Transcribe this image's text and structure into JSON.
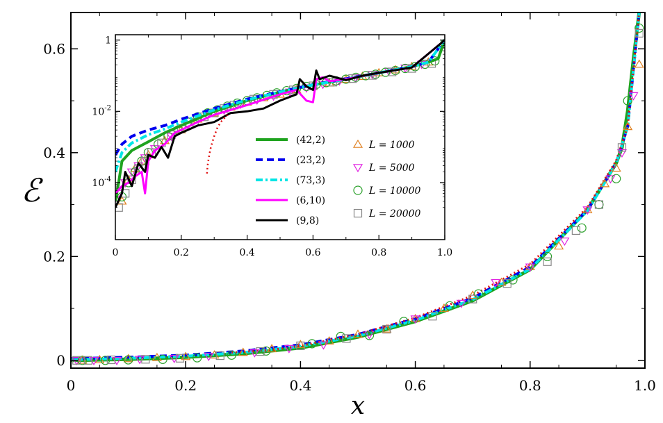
{
  "chart_data": [
    {
      "type": "line",
      "name": "main",
      "xlabel": "x",
      "ylabel": "ℰ",
      "xlim": [
        0,
        1.0
      ],
      "ylim": [
        -0.015,
        0.67
      ],
      "xticks": [
        0,
        0.2,
        0.4,
        0.6,
        0.8,
        1.0
      ],
      "xtick_labels": [
        "0",
        "0.2",
        "0.4",
        "0.6",
        "0.8",
        "1.0"
      ],
      "yticks": [
        0,
        0.2,
        0.4,
        0.6
      ],
      "ytick_labels": [
        "0",
        "0.2",
        "0.4",
        "0.6"
      ],
      "series": [
        {
          "name": "(42,2)",
          "style": "solid",
          "color": "#1fa31f",
          "width": 5,
          "x": [
            0,
            0.1,
            0.2,
            0.3,
            0.4,
            0.5,
            0.6,
            0.7,
            0.8,
            0.9,
            0.95,
            0.96,
            0.97,
            0.98,
            0.99
          ],
          "y": [
            0,
            0.002,
            0.006,
            0.013,
            0.024,
            0.045,
            0.075,
            0.115,
            0.175,
            0.29,
            0.38,
            0.41,
            0.48,
            0.58,
            0.67
          ]
        },
        {
          "name": "(23,2)",
          "style": "dashed",
          "color": "#0000ee",
          "width": 4,
          "x": [
            0,
            0.1,
            0.2,
            0.3,
            0.4,
            0.5,
            0.6,
            0.7,
            0.8,
            0.9,
            0.95,
            0.97,
            0.99
          ],
          "y": [
            0.003,
            0.006,
            0.01,
            0.018,
            0.03,
            0.05,
            0.08,
            0.12,
            0.18,
            0.29,
            0.38,
            0.45,
            0.67
          ]
        },
        {
          "name": "(73,3)",
          "style": "dashdot",
          "color": "#00e5e5",
          "width": 4,
          "x": [
            0,
            0.1,
            0.2,
            0.3,
            0.4,
            0.5,
            0.6,
            0.7,
            0.8,
            0.9,
            0.95,
            0.97,
            0.99
          ],
          "y": [
            0.001,
            0.004,
            0.008,
            0.015,
            0.027,
            0.047,
            0.077,
            0.117,
            0.176,
            0.288,
            0.38,
            0.45,
            0.67
          ]
        },
        {
          "name": "red-dotted",
          "style": "dotted",
          "color": "#e01010",
          "width": 3,
          "x": [
            0.28,
            0.35,
            0.4,
            0.5,
            0.6,
            0.7,
            0.8,
            0.9,
            0.95,
            0.97,
            0.99
          ],
          "y": [
            0.015,
            0.02,
            0.028,
            0.05,
            0.082,
            0.125,
            0.185,
            0.295,
            0.385,
            0.45,
            0.67
          ]
        }
      ],
      "markers": [
        {
          "name": "L = 1000",
          "symbol": "triangle-up",
          "color": "#e08020",
          "x": [
            0.02,
            0.05,
            0.1,
            0.15,
            0.2,
            0.25,
            0.3,
            0.35,
            0.4,
            0.45,
            0.5,
            0.55,
            0.6,
            0.65,
            0.7,
            0.75,
            0.8,
            0.85,
            0.9,
            0.93,
            0.95,
            0.97,
            0.99
          ],
          "y": [
            0.0,
            0.001,
            0.003,
            0.005,
            0.007,
            0.01,
            0.015,
            0.022,
            0.03,
            0.037,
            0.05,
            0.06,
            0.08,
            0.1,
            0.125,
            0.15,
            0.18,
            0.22,
            0.29,
            0.34,
            0.37,
            0.45,
            0.57
          ]
        },
        {
          "name": "L = 5000",
          "symbol": "triangle-down",
          "color": "#e020e0",
          "x": [
            0.01,
            0.04,
            0.08,
            0.12,
            0.18,
            0.24,
            0.32,
            0.38,
            0.44,
            0.52,
            0.6,
            0.68,
            0.74,
            0.8,
            0.86,
            0.9,
            0.94,
            0.96,
            0.98
          ],
          "y": [
            0.0,
            0.0,
            0.0,
            0.002,
            0.004,
            0.008,
            0.015,
            0.023,
            0.03,
            0.05,
            0.08,
            0.11,
            0.15,
            0.18,
            0.23,
            0.29,
            0.35,
            0.4,
            0.51
          ]
        },
        {
          "name": "L = 10000",
          "symbol": "circle",
          "color": "#2aa02a",
          "x": [
            0.02,
            0.06,
            0.1,
            0.16,
            0.22,
            0.28,
            0.34,
            0.42,
            0.47,
            0.52,
            0.58,
            0.66,
            0.71,
            0.77,
            0.83,
            0.89,
            0.92,
            0.95,
            0.97,
            0.99
          ],
          "y": [
            0.0,
            0.0,
            0.001,
            0.002,
            0.005,
            0.01,
            0.018,
            0.032,
            0.046,
            0.048,
            0.075,
            0.105,
            0.128,
            0.155,
            0.2,
            0.255,
            0.3,
            0.35,
            0.5,
            0.64
          ]
        },
        {
          "name": "L = 20000",
          "symbol": "square",
          "color": "#888888",
          "x": [
            0.01,
            0.03,
            0.07,
            0.13,
            0.19,
            0.26,
            0.33,
            0.4,
            0.48,
            0.55,
            0.63,
            0.7,
            0.76,
            0.83,
            0.88,
            0.92,
            0.96,
            0.99
          ],
          "y": [
            0.0,
            0.0,
            0.001,
            0.002,
            0.004,
            0.009,
            0.017,
            0.028,
            0.042,
            0.06,
            0.085,
            0.118,
            0.148,
            0.19,
            0.25,
            0.3,
            0.41,
            0.63
          ]
        }
      ]
    },
    {
      "type": "line",
      "name": "inset",
      "yscale": "log",
      "xlim": [
        0,
        1.0
      ],
      "ylim_log10": [
        -5.6,
        0.15
      ],
      "xticks": [
        0,
        0.2,
        0.4,
        0.6,
        0.8,
        1.0
      ],
      "xtick_labels": [
        "0",
        "0.2",
        "0.4",
        "0.6",
        "0.8",
        "1.0"
      ],
      "yticks_log10": [
        -4,
        -2,
        0
      ],
      "ytick_labels": [
        "10^-4",
        "10^-2",
        "1"
      ],
      "series": [
        {
          "name": "(42,2)",
          "style": "solid",
          "color": "#1fa31f",
          "width": 4,
          "x": [
            0,
            0.01,
            0.02,
            0.05,
            0.1,
            0.15,
            0.2,
            0.3,
            0.4,
            0.5,
            0.6,
            0.7,
            0.8,
            0.9,
            0.95,
            0.98,
            1.0
          ],
          "y": [
            3e-05,
            0.0001,
            0.0004,
            0.0008,
            0.0014,
            0.0025,
            0.004,
            0.01,
            0.02,
            0.035,
            0.055,
            0.08,
            0.12,
            0.18,
            0.24,
            0.3,
            1.0
          ]
        },
        {
          "name": "(23,2)",
          "style": "dashed",
          "color": "#0000ee",
          "width": 4,
          "x": [
            0,
            0.02,
            0.05,
            0.1,
            0.15,
            0.2,
            0.3,
            0.4,
            0.5,
            0.6,
            0.7,
            0.8,
            0.9,
            0.95,
            1.0
          ],
          "y": [
            0.0006,
            0.0012,
            0.002,
            0.003,
            0.004,
            0.006,
            0.012,
            0.022,
            0.036,
            0.056,
            0.082,
            0.12,
            0.18,
            0.24,
            1.0
          ]
        },
        {
          "name": "(73,3)",
          "style": "dashdot",
          "color": "#00e5e5",
          "width": 4,
          "x": [
            0,
            0.02,
            0.05,
            0.1,
            0.15,
            0.2,
            0.3,
            0.4,
            0.5,
            0.6,
            0.7,
            0.8,
            0.9,
            0.95,
            1.0
          ],
          "y": [
            0.0002,
            0.0007,
            0.0013,
            0.0022,
            0.0032,
            0.005,
            0.011,
            0.021,
            0.035,
            0.055,
            0.08,
            0.12,
            0.18,
            0.24,
            1.0
          ]
        },
        {
          "name": "(6,10)",
          "style": "solid",
          "color": "#ff00ff",
          "width": 3,
          "x": [
            0,
            0.02,
            0.04,
            0.06,
            0.08,
            0.09,
            0.1,
            0.12,
            0.15,
            0.18,
            0.2,
            0.25,
            0.3,
            0.4,
            0.5,
            0.55,
            0.58,
            0.6,
            0.61,
            0.63,
            0.65,
            0.7,
            0.8,
            0.9,
            1.0
          ],
          "y": [
            5e-05,
            8e-05,
            0.0001,
            0.00015,
            0.0002,
            5e-05,
            0.0004,
            0.0008,
            0.0012,
            0.0025,
            0.003,
            0.005,
            0.008,
            0.015,
            0.03,
            0.04,
            0.02,
            0.018,
            0.08,
            0.09,
            0.07,
            0.08,
            0.12,
            0.17,
            1.0
          ]
        },
        {
          "name": "(9,8)",
          "style": "solid",
          "color": "#000000",
          "width": 3,
          "x": [
            0,
            0.02,
            0.03,
            0.05,
            0.07,
            0.09,
            0.1,
            0.12,
            0.14,
            0.16,
            0.18,
            0.2,
            0.25,
            0.3,
            0.35,
            0.4,
            0.45,
            0.5,
            0.55,
            0.56,
            0.58,
            0.6,
            0.61,
            0.62,
            0.65,
            0.7,
            0.75,
            0.8,
            0.9,
            1.0
          ],
          "y": [
            2e-05,
            5e-05,
            0.0002,
            8e-05,
            0.00035,
            0.0002,
            0.0006,
            0.0005,
            0.001,
            0.0005,
            0.002,
            0.0025,
            0.004,
            0.005,
            0.009,
            0.01,
            0.012,
            0.02,
            0.03,
            0.08,
            0.05,
            0.04,
            0.14,
            0.08,
            0.1,
            0.075,
            0.1,
            0.12,
            0.17,
            1.0
          ]
        },
        {
          "name": "red-dotted",
          "style": "dotted",
          "color": "#e01010",
          "width": 2.5,
          "x": [
            0.278,
            0.28,
            0.285,
            0.29,
            0.3,
            0.31,
            0.32,
            0.34
          ],
          "y": [
            0.00018,
            0.0003,
            0.0006,
            0.001,
            0.002,
            0.0035,
            0.005,
            0.008
          ]
        }
      ],
      "markers": [
        {
          "name": "L = 1000",
          "symbol": "triangle-up",
          "color": "#e08020",
          "x": [
            0.02,
            0.04,
            0.06,
            0.08,
            0.1,
            0.15,
            0.2,
            0.25,
            0.3,
            0.35,
            0.4,
            0.45,
            0.5,
            0.55,
            0.6,
            0.65,
            0.7,
            0.75,
            0.8,
            0.85,
            0.9,
            0.95
          ],
          "y": [
            3e-05,
            0.00012,
            0.00025,
            0.0004,
            0.0006,
            0.0015,
            0.003,
            0.006,
            0.009,
            0.013,
            0.018,
            0.024,
            0.03,
            0.04,
            0.05,
            0.062,
            0.078,
            0.095,
            0.12,
            0.145,
            0.18,
            0.24
          ]
        },
        {
          "name": "L = 5000",
          "symbol": "triangle-down",
          "color": "#e020e0",
          "x": [
            0.01,
            0.03,
            0.05,
            0.07,
            0.09,
            0.12,
            0.17,
            0.22,
            0.28,
            0.33,
            0.38,
            0.43,
            0.48,
            0.53,
            0.58,
            0.63,
            0.68,
            0.73,
            0.78,
            0.83,
            0.88,
            0.93
          ],
          "y": [
            5e-05,
            0.0001,
            0.0002,
            0.0003,
            0.0005,
            0.0009,
            0.002,
            0.004,
            0.008,
            0.011,
            0.016,
            0.021,
            0.027,
            0.035,
            0.046,
            0.058,
            0.072,
            0.088,
            0.11,
            0.135,
            0.165,
            0.21
          ]
        },
        {
          "name": "L = 10000",
          "symbol": "circle",
          "color": "#2aa02a",
          "x": [
            0.02,
            0.04,
            0.06,
            0.08,
            0.1,
            0.13,
            0.16,
            0.19,
            0.22,
            0.25,
            0.28,
            0.31,
            0.34,
            0.37,
            0.4,
            0.43,
            0.46,
            0.49,
            0.52,
            0.55,
            0.58,
            0.61,
            0.64,
            0.67,
            0.7,
            0.73,
            0.76,
            0.79,
            0.82,
            0.85,
            0.88,
            0.91,
            0.94,
            0.97,
            1.0
          ],
          "y": [
            4e-05,
            0.0001,
            0.0002,
            0.0004,
            0.0007,
            0.0012,
            0.002,
            0.003,
            0.005,
            0.007,
            0.009,
            0.011,
            0.014,
            0.017,
            0.02,
            0.024,
            0.028,
            0.033,
            0.038,
            0.044,
            0.05,
            0.057,
            0.064,
            0.072,
            0.08,
            0.09,
            0.1,
            0.11,
            0.125,
            0.14,
            0.16,
            0.18,
            0.21,
            0.26,
            0.8
          ]
        },
        {
          "name": "L = 20000",
          "symbol": "square",
          "color": "#888888",
          "x": [
            0.01,
            0.03,
            0.05,
            0.07,
            0.09,
            0.11,
            0.14,
            0.17,
            0.2,
            0.24,
            0.27,
            0.3,
            0.33,
            0.36,
            0.42,
            0.48,
            0.54,
            0.6,
            0.66,
            0.72,
            0.78,
            0.84,
            0.9,
            0.96
          ],
          "y": [
            2e-05,
            5e-05,
            0.00012,
            0.00025,
            0.0004,
            0.0007,
            0.0013,
            0.0022,
            0.0033,
            0.005,
            0.007,
            0.009,
            0.012,
            0.015,
            0.022,
            0.03,
            0.04,
            0.052,
            0.066,
            0.083,
            0.102,
            0.128,
            0.16,
            0.22
          ]
        }
      ],
      "legend_left": [
        "(42,2)",
        "(23,2)",
        "(73,3)",
        "(6,10)",
        "(9,8)"
      ],
      "legend_right": [
        "L = 1000",
        "L = 5000",
        "L = 10000",
        "L = 20000"
      ]
    }
  ]
}
